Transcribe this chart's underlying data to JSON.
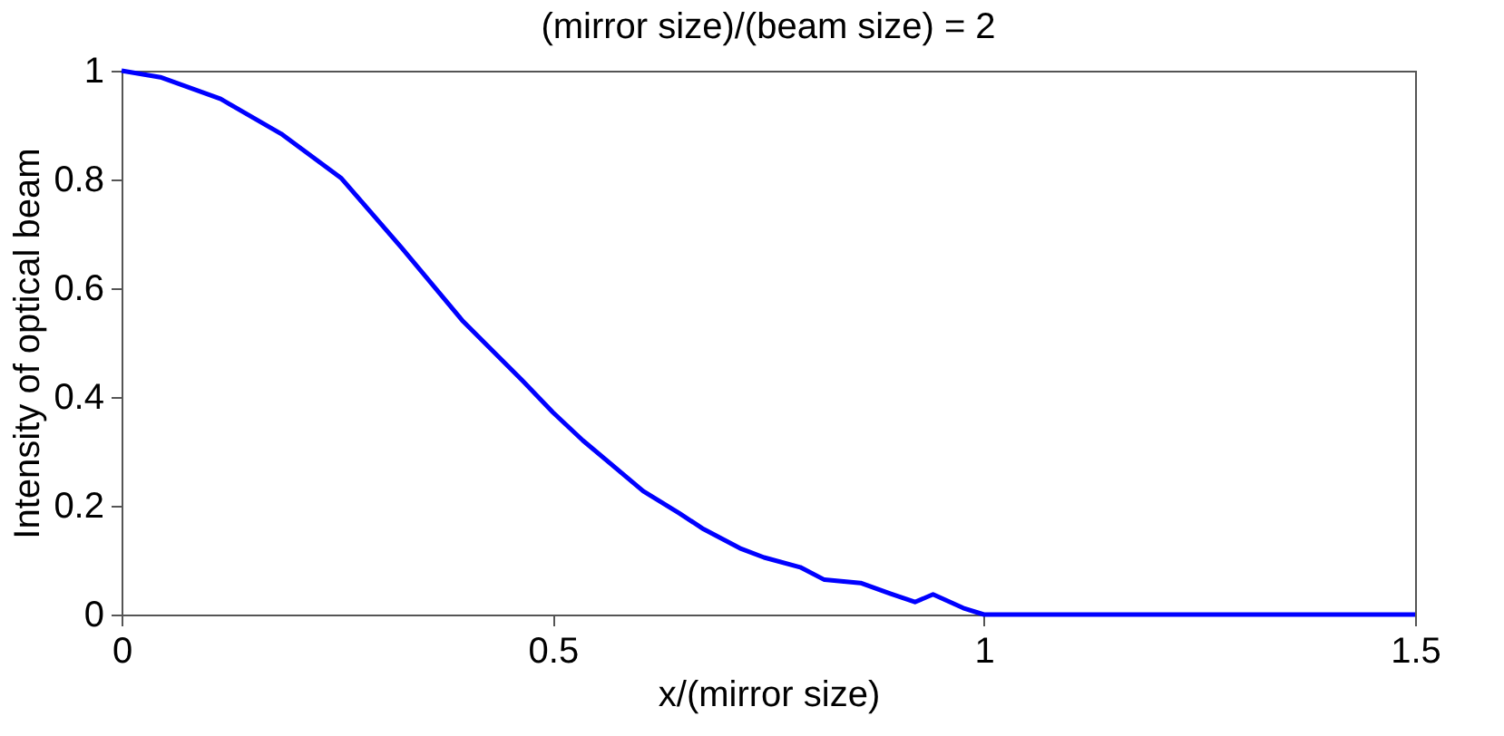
{
  "chart_data": {
    "type": "line",
    "title": "(mirror size)/(beam size) = 2",
    "xlabel": "x/(mirror size)",
    "ylabel": "Intensity of optical beam",
    "series": [
      {
        "color": "#0000ff",
        "x": [
          0,
          0.045,
          0.115,
          0.185,
          0.255,
          0.325,
          0.395,
          0.465,
          0.5,
          0.535,
          0.605,
          0.647,
          0.675,
          0.717,
          0.745,
          0.787,
          0.815,
          0.857,
          0.892,
          0.92,
          0.941,
          0.976,
          1.0,
          1.05,
          1.5
        ],
        "values": [
          1.0,
          0.988,
          0.948,
          0.884,
          0.802,
          0.674,
          0.541,
          0.43,
          0.372,
          0.32,
          0.227,
          0.186,
          0.157,
          0.122,
          0.105,
          0.087,
          0.064,
          0.058,
          0.038,
          0.023,
          0.037,
          0.012,
          0.0,
          0.0,
          0.0
        ]
      }
    ],
    "xlim": [
      0,
      1.5
    ],
    "xticks": [
      0,
      0.5,
      1,
      1.5
    ],
    "ylim": [
      0,
      1
    ],
    "yticks": [
      0,
      0.2,
      0.4,
      0.6,
      0.8,
      1
    ],
    "grid": false,
    "line_style": "solid"
  }
}
